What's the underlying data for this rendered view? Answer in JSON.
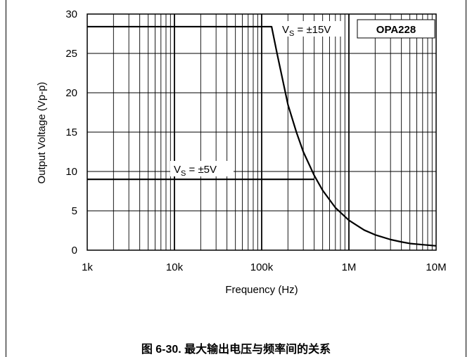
{
  "chart_data": {
    "type": "line",
    "xscale": "log",
    "xlim": [
      1000,
      10000000
    ],
    "ylim": [
      0,
      30
    ],
    "grid": true,
    "xlabel": "Frequency (Hz)",
    "ylabel": "Output Voltage (Vp-p)",
    "xticks": [
      {
        "value": 1000,
        "label": "1k"
      },
      {
        "value": 10000,
        "label": "10k"
      },
      {
        "value": 100000,
        "label": "100k"
      },
      {
        "value": 1000000,
        "label": "1M"
      },
      {
        "value": 10000000,
        "label": "10M"
      }
    ],
    "yticks": [
      0,
      5,
      10,
      15,
      20,
      25,
      30
    ],
    "badge": "OPA228",
    "series": [
      {
        "label_main": "V",
        "label_sub": "S",
        "label_rest": " = ±15V",
        "points": [
          [
            1000,
            28.4
          ],
          [
            130000,
            28.4
          ],
          [
            150000,
            25
          ],
          [
            200000,
            18.5
          ],
          [
            250000,
            15
          ],
          [
            300000,
            12.5
          ],
          [
            400000,
            9.5
          ],
          [
            500000,
            7.6
          ],
          [
            700000,
            5.4
          ],
          [
            1000000,
            3.8
          ],
          [
            1500000,
            2.55
          ],
          [
            2000000,
            1.95
          ],
          [
            3000000,
            1.35
          ],
          [
            4000000,
            1.05
          ],
          [
            5000000,
            0.85
          ],
          [
            7000000,
            0.7
          ],
          [
            10000000,
            0.55
          ]
        ]
      },
      {
        "label_main": "V",
        "label_sub": "S",
        "label_rest": " = ±5V",
        "points": [
          [
            1000,
            9
          ],
          [
            400000,
            9
          ]
        ]
      }
    ]
  },
  "caption": "图 6-30. 最大输出电压与频率间的关系"
}
